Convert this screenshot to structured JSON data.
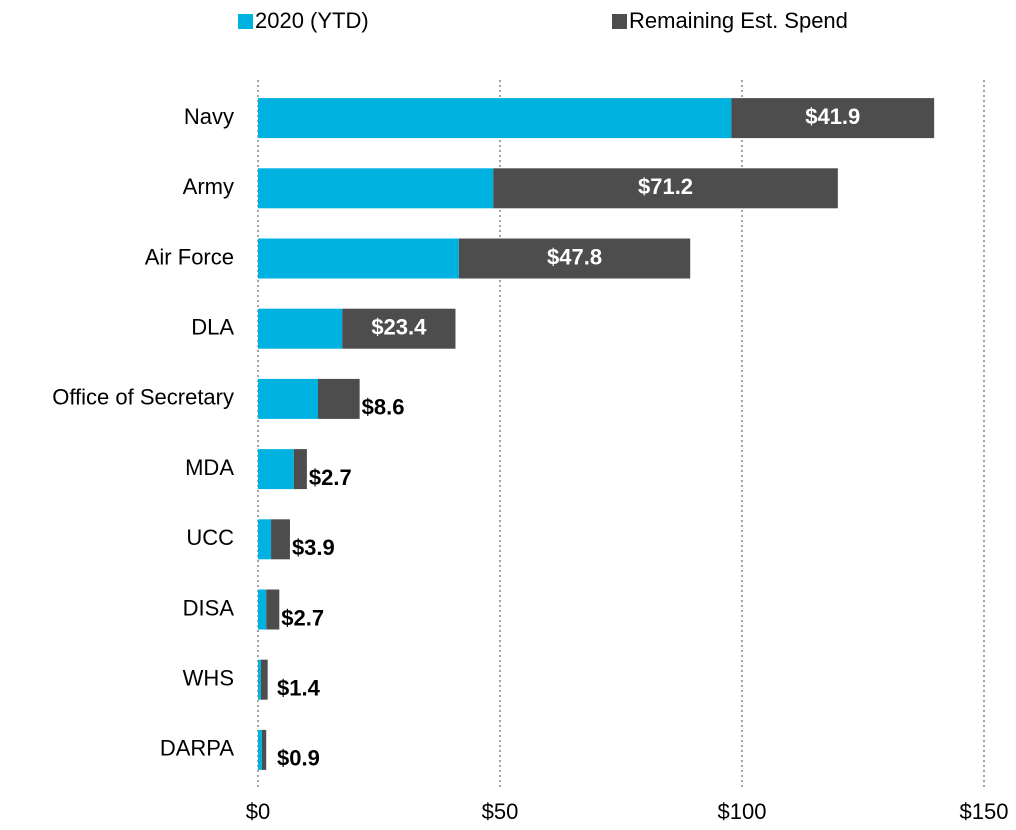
{
  "chart_data": {
    "type": "stacked-bar-horizontal",
    "categories": [
      "Navy",
      "Army",
      "Air Force",
      "DLA",
      "Office of Secretary",
      "MDA",
      "UCC",
      "DISA",
      "WHS",
      "DARPA"
    ],
    "series": [
      {
        "name": "2020 (YTD)",
        "color": "#00b2e0",
        "values": [
          97.8,
          48.6,
          41.5,
          17.4,
          12.4,
          7.4,
          2.7,
          1.7,
          0.6,
          0.8
        ]
      },
      {
        "name": "Remaining Est. Spend",
        "color": "#4d4d4d",
        "values": [
          41.9,
          71.2,
          47.8,
          23.4,
          8.6,
          2.7,
          3.9,
          2.7,
          1.4,
          0.9
        ],
        "value_labels": [
          "$41.9",
          "$71.2",
          "$47.8",
          "$23.4",
          "$8.6",
          "$2.7",
          "$3.9",
          "$2.7",
          "$1.4",
          "$0.9"
        ]
      }
    ],
    "xlim": [
      0,
      150
    ],
    "xticks": [
      {
        "value": 0,
        "label": "$0"
      },
      {
        "value": 50,
        "label": "$50"
      },
      {
        "value": 100,
        "label": "$100"
      },
      {
        "value": 150,
        "label": "$150"
      }
    ],
    "grid": true,
    "legend": "top"
  }
}
